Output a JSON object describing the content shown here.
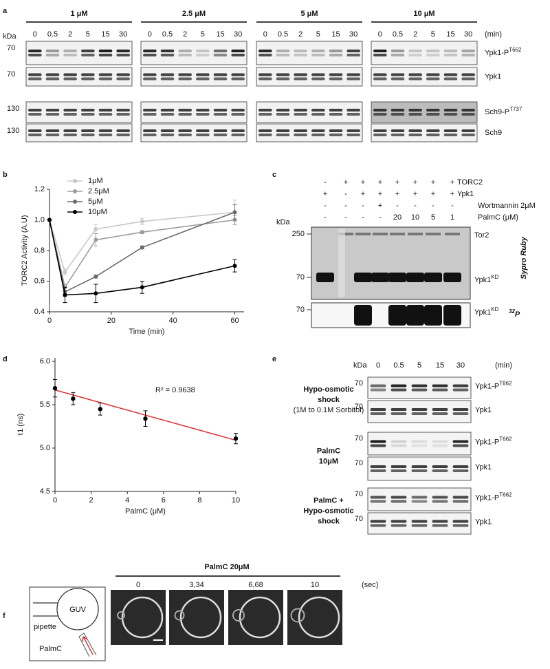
{
  "panel_labels": [
    "a",
    "b",
    "c",
    "d",
    "e",
    "f"
  ],
  "panel_a": {
    "concentrations": [
      "1 μM",
      "2.5 μM",
      "5 μM",
      "10 μM"
    ],
    "times": [
      "0",
      "0.5",
      "2",
      "5",
      "15",
      "30"
    ],
    "time_unit": "(min)",
    "kda": "kDa",
    "markers": [
      "70",
      "70",
      "130",
      "130"
    ],
    "rows": [
      {
        "text": "Ypk1-P",
        "sup": "T662"
      },
      {
        "text": "Ypk1"
      },
      {
        "text": "Sch9-P",
        "sup": "T737"
      },
      {
        "text": "Sch9"
      }
    ]
  },
  "chart_data": [
    {
      "type": "line",
      "x": [
        0,
        5,
        15,
        30,
        60
      ],
      "xlim": [
        0,
        63
      ],
      "xticks": [
        0,
        20,
        40,
        60
      ],
      "ylim": [
        0.4,
        1.2
      ],
      "yticks": [
        0.4,
        0.6,
        0.8,
        {
          "value": 1,
          "label": "1.0"
        },
        1.2
      ],
      "xlabel": "Time (min)",
      "ylabel": "TORC2 Activity (A.U)",
      "legend": "upper left",
      "series": [
        {
          "name": "1μM",
          "color": "#c8c8c8",
          "values": [
            1.0,
            0.66,
            0.94,
            0.99,
            1.05
          ],
          "errors": [
            0,
            0.02,
            0.03,
            0.02,
            0.08
          ]
        },
        {
          "name": "2.5μM",
          "color": "#9c9c9c",
          "values": [
            1.0,
            0.56,
            0.87,
            0.92,
            1.0
          ],
          "errors": [
            0,
            0.02,
            0.04,
            0.01,
            0.03
          ]
        },
        {
          "name": "5μM",
          "color": "#6a6a6a",
          "values": [
            1.0,
            0.53,
            0.63,
            0.82,
            1.05
          ],
          "errors": [
            0,
            0.03,
            0.01,
            0.01,
            0.05
          ]
        },
        {
          "name": "10μM",
          "color": "#000000",
          "values": [
            1.0,
            0.51,
            0.52,
            0.56,
            0.7
          ],
          "errors": [
            0,
            0.05,
            0.06,
            0.04,
            0.04
          ]
        }
      ]
    },
    {
      "type": "scatter",
      "x": [
        0,
        1,
        2.5,
        5,
        10
      ],
      "values": [
        5.69,
        5.57,
        5.45,
        5.34,
        5.11
      ],
      "errors": [
        0.1,
        0.07,
        0.07,
        0.09,
        0.06
      ],
      "color": "#000000",
      "fit": {
        "color": "#e03030",
        "x": [
          0,
          10
        ],
        "y": [
          5.67,
          5.09
        ]
      },
      "annotation": "R² = 0.9638",
      "xlim": [
        0,
        10
      ],
      "xticks": [
        0,
        2,
        4,
        6,
        8,
        10
      ],
      "ylim": [
        4.5,
        6.04
      ],
      "yticks": [
        4.5,
        {
          "value": 5,
          "label": "5.0"
        },
        5.5,
        {
          "value": 6,
          "label": "6.0"
        }
      ],
      "xlabel": "PalmC (μM)",
      "ylabel": "τ1 (ns)"
    }
  ],
  "panel_c": {
    "kda": "kDa",
    "conditions": [
      {
        "label": "TORC2",
        "lanes": [
          "-",
          "+",
          "+",
          "+",
          "+",
          "+",
          "+",
          "+"
        ]
      },
      {
        "label": "Ypk1",
        "lanes": [
          "+",
          "-",
          "+",
          "+",
          "+",
          "+",
          "+",
          "+"
        ]
      },
      {
        "label": "Wortmannin 2μM",
        "lanes": [
          "-",
          "-",
          "-",
          "+",
          "-",
          "-",
          "-",
          "-"
        ]
      },
      {
        "label": "PalmC (μM)",
        "lanes": [
          "-",
          "-",
          "-",
          "-",
          "20",
          "10",
          "5",
          "1"
        ]
      }
    ],
    "markers": [
      "250",
      "70",
      "70"
    ],
    "bands": [
      {
        "text": "Tor2"
      },
      {
        "text": "Ypk1",
        "sup": "KD"
      },
      {
        "text": "Ypk1",
        "sup": "KD"
      }
    ],
    "stains": [
      {
        "text": "Sypro Ruby"
      },
      {
        "sup": "32",
        "text": "P"
      }
    ]
  },
  "panel_e": {
    "kda": "kDa",
    "times": [
      "0",
      "0.5",
      "5",
      "15",
      "30"
    ],
    "time_unit": "(min)",
    "groups": [
      {
        "label": [
          "Hypo-osmotic",
          "shock"
        ],
        "sublabel": "(1M to 0.1M Sorbitol)",
        "rows": [
          {
            "marker": "70",
            "name": {
              "text": "Ypk1-P",
              "sup": "T662"
            }
          },
          {
            "marker": "70",
            "name": {
              "text": "Ypk1"
            }
          }
        ]
      },
      {
        "label": [
          "PalmC",
          "10μM"
        ],
        "rows": [
          {
            "marker": "70",
            "name": {
              "text": "Ypk1-P",
              "sup": "T662"
            }
          },
          {
            "marker": "70",
            "name": {
              "text": "Ypk1"
            }
          }
        ]
      },
      {
        "label": [
          "PalmC +",
          "Hypo-osmotic",
          "shock"
        ],
        "rows": [
          {
            "marker": "70",
            "name": {
              "text": "Ypk1-P",
              "sup": "T662"
            }
          },
          {
            "marker": "70",
            "name": {
              "text": "Ypk1"
            }
          }
        ]
      }
    ]
  },
  "panel_f": {
    "title": "PalmC 20μM",
    "times": [
      "0",
      "3,34",
      "6,68",
      "10"
    ],
    "time_unit": "(sec)",
    "diagram": {
      "vesicle": "GUV",
      "pipette": "pipette",
      "peptide": "PalmC"
    }
  }
}
